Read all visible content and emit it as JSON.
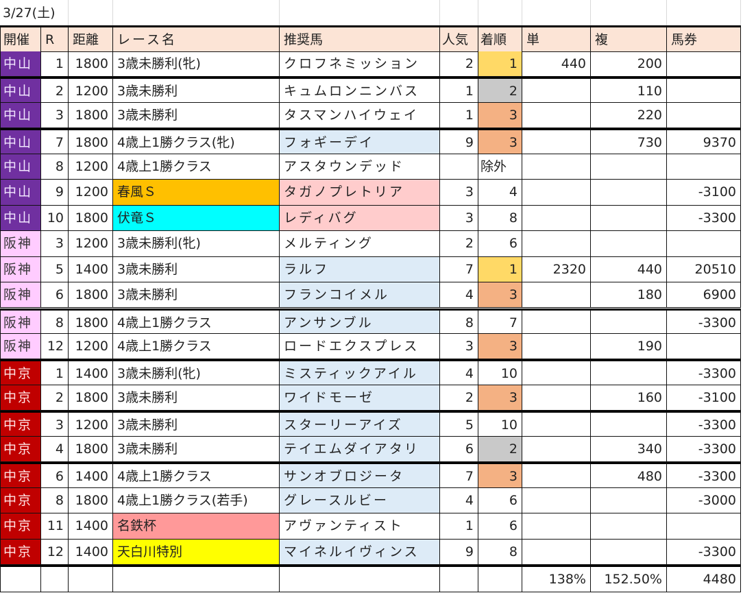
{
  "date_label": "3/27(土)",
  "headers": {
    "venue": "開催",
    "race": "R",
    "distance": "距離",
    "race_name": "レース名",
    "horse": "推奨馬",
    "popularity": "人気",
    "finish": "着順",
    "win": "単",
    "place": "複",
    "ticket": "馬券"
  },
  "colors": {
    "header_bg": "#fce4d6",
    "nakayama": "#7030a0",
    "hanshin": "#ffccff",
    "chukyo": "#c00000",
    "first_place": "#ffd966",
    "second_place": "#c9c9c9",
    "third_place": "#f4b183",
    "horse_highlight_blue": "#ddebf7",
    "horse_highlight_pink": "#ffcccc",
    "race_orange": "#ffc000",
    "race_cyan": "#00ffff",
    "race_salmon": "#ff9999",
    "race_yellow": "#ffff00"
  },
  "rows": [
    {
      "venue": "中山",
      "r": "1",
      "dist": "1800",
      "race": "3歳未勝利(牝)",
      "horse": "クロフネミッション",
      "pop": "2",
      "finish": "1",
      "win": "440",
      "place": "200",
      "ticket": "",
      "venue_cls": "nakayama",
      "race_bg": "",
      "horse_bg": "",
      "finish_bg": "#ffd966",
      "thick_top": true
    },
    {
      "venue": "中山",
      "r": "2",
      "dist": "1200",
      "race": "3歳未勝利",
      "horse": "キュムロンニンバス",
      "pop": "1",
      "finish": "2",
      "win": "",
      "place": "110",
      "ticket": "",
      "venue_cls": "nakayama",
      "race_bg": "",
      "horse_bg": "",
      "finish_bg": "#c9c9c9",
      "thick_top": true
    },
    {
      "venue": "中山",
      "r": "3",
      "dist": "1800",
      "race": "3歳未勝利",
      "horse": "タスマンハイウェイ",
      "pop": "1",
      "finish": "3",
      "win": "",
      "place": "220",
      "ticket": "",
      "venue_cls": "nakayama",
      "race_bg": "",
      "horse_bg": "",
      "finish_bg": "#f4b183",
      "thick_top": false
    },
    {
      "venue": "中山",
      "r": "7",
      "dist": "1800",
      "race": "4歳上1勝クラス(牝)",
      "horse": "フォギーデイ",
      "pop": "9",
      "finish": "3",
      "win": "",
      "place": "730",
      "ticket": "9370",
      "venue_cls": "nakayama",
      "race_bg": "",
      "horse_bg": "#ddebf7",
      "finish_bg": "#f4b183",
      "thick_top": true
    },
    {
      "venue": "中山",
      "r": "8",
      "dist": "1200",
      "race": "4歳上1勝クラス",
      "horse": "アスタウンデッド",
      "pop": "",
      "finish": "除外",
      "win": "",
      "place": "",
      "ticket": "",
      "venue_cls": "nakayama",
      "race_bg": "",
      "horse_bg": "",
      "finish_bg": "",
      "thick_top": false,
      "finish_left": true
    },
    {
      "venue": "中山",
      "r": "9",
      "dist": "1200",
      "race": "春風Ｓ",
      "horse": "タガノプレトリア",
      "pop": "3",
      "finish": "4",
      "win": "",
      "place": "",
      "ticket": "-3100",
      "venue_cls": "nakayama",
      "race_bg": "#ffc000",
      "horse_bg": "#ffcccc",
      "finish_bg": "",
      "thick_top": false
    },
    {
      "venue": "中山",
      "r": "10",
      "dist": "1800",
      "race": "伏竜Ｓ",
      "horse": "レディバグ",
      "pop": "3",
      "finish": "8",
      "win": "",
      "place": "",
      "ticket": "-3300",
      "venue_cls": "nakayama",
      "race_bg": "#00ffff",
      "horse_bg": "#ffcccc",
      "finish_bg": "",
      "thick_top": false
    },
    {
      "venue": "阪神",
      "r": "3",
      "dist": "1200",
      "race": "3歳未勝利(牝)",
      "horse": "メルティング",
      "pop": "2",
      "finish": "6",
      "win": "",
      "place": "",
      "ticket": "",
      "venue_cls": "hanshin",
      "race_bg": "",
      "horse_bg": "",
      "finish_bg": "",
      "thick_top": false
    },
    {
      "venue": "阪神",
      "r": "5",
      "dist": "1400",
      "race": "3歳未勝利",
      "horse": "ラルフ",
      "pop": "7",
      "finish": "1",
      "win": "2320",
      "place": "440",
      "ticket": "20510",
      "venue_cls": "hanshin",
      "race_bg": "",
      "horse_bg": "#ddebf7",
      "finish_bg": "#ffd966",
      "thick_top": false
    },
    {
      "venue": "阪神",
      "r": "6",
      "dist": "1800",
      "race": "3歳未勝利",
      "horse": "フランコイメル",
      "pop": "4",
      "finish": "3",
      "win": "",
      "place": "180",
      "ticket": "6900",
      "venue_cls": "hanshin",
      "race_bg": "",
      "horse_bg": "#ddebf7",
      "finish_bg": "#f4b183",
      "thick_top": false
    },
    {
      "venue": "阪神",
      "r": "8",
      "dist": "1800",
      "race": "4歳上1勝クラス",
      "horse": "アンサンブル",
      "pop": "8",
      "finish": "7",
      "win": "",
      "place": "",
      "ticket": "-3300",
      "venue_cls": "hanshin",
      "race_bg": "",
      "horse_bg": "#ddebf7",
      "finish_bg": "",
      "thick_top": true
    },
    {
      "venue": "阪神",
      "r": "12",
      "dist": "1200",
      "race": "4歳上1勝クラス",
      "horse": "ロードエクスプレス",
      "pop": "3",
      "finish": "3",
      "win": "",
      "place": "190",
      "ticket": "",
      "venue_cls": "hanshin",
      "race_bg": "",
      "horse_bg": "",
      "finish_bg": "#f4b183",
      "thick_top": false
    },
    {
      "venue": "中京",
      "r": "1",
      "dist": "1400",
      "race": "3歳未勝利(牝)",
      "horse": "ミスティックアイル",
      "pop": "4",
      "finish": "10",
      "win": "",
      "place": "",
      "ticket": "-3300",
      "venue_cls": "chukyo",
      "race_bg": "",
      "horse_bg": "#ddebf7",
      "finish_bg": "",
      "thick_top": true
    },
    {
      "venue": "中京",
      "r": "2",
      "dist": "1800",
      "race": "3歳未勝利",
      "horse": "ワイドモーゼ",
      "pop": "2",
      "finish": "3",
      "win": "",
      "place": "160",
      "ticket": "-3100",
      "venue_cls": "chukyo",
      "race_bg": "",
      "horse_bg": "#ddebf7",
      "finish_bg": "#f4b183",
      "thick_top": false
    },
    {
      "venue": "中京",
      "r": "3",
      "dist": "1200",
      "race": "3歳未勝利",
      "horse": "スターリーアイズ",
      "pop": "5",
      "finish": "10",
      "win": "",
      "place": "",
      "ticket": "-3300",
      "venue_cls": "chukyo",
      "race_bg": "",
      "horse_bg": "#ddebf7",
      "finish_bg": "",
      "thick_top": true
    },
    {
      "venue": "中京",
      "r": "4",
      "dist": "1800",
      "race": "3歳未勝利",
      "horse": "テイエムダイアタリ",
      "pop": "6",
      "finish": "2",
      "win": "",
      "place": "340",
      "ticket": "-3300",
      "venue_cls": "chukyo",
      "race_bg": "",
      "horse_bg": "#ddebf7",
      "finish_bg": "#c9c9c9",
      "thick_top": false
    },
    {
      "venue": "中京",
      "r": "6",
      "dist": "1400",
      "race": "4歳上1勝クラス",
      "horse": "サンオブロジータ",
      "pop": "7",
      "finish": "3",
      "win": "",
      "place": "480",
      "ticket": "-3300",
      "venue_cls": "chukyo",
      "race_bg": "",
      "horse_bg": "#ddebf7",
      "finish_bg": "#f4b183",
      "thick_top": true
    },
    {
      "venue": "中京",
      "r": "8",
      "dist": "1800",
      "race": "4歳上1勝クラス(若手)",
      "horse": "グレースルビー",
      "pop": "4",
      "finish": "6",
      "win": "",
      "place": "",
      "ticket": "-3000",
      "venue_cls": "chukyo",
      "race_bg": "",
      "horse_bg": "#ddebf7",
      "finish_bg": "",
      "thick_top": false
    },
    {
      "venue": "中京",
      "r": "11",
      "dist": "1400",
      "race": "名鉄杯",
      "horse": "アヴァンティスト",
      "pop": "1",
      "finish": "6",
      "win": "",
      "place": "",
      "ticket": "",
      "venue_cls": "chukyo",
      "race_bg": "#ff9999",
      "horse_bg": "",
      "finish_bg": "",
      "thick_top": false
    },
    {
      "venue": "中京",
      "r": "12",
      "dist": "1400",
      "race": "天白川特別",
      "horse": "マイネルイヴィンス",
      "pop": "9",
      "finish": "8",
      "win": "",
      "place": "",
      "ticket": "-3300",
      "venue_cls": "chukyo",
      "race_bg": "#ffff00",
      "horse_bg": "#ddebf7",
      "finish_bg": "",
      "thick_top": false
    }
  ],
  "totals": {
    "win_rate": "138%",
    "place_rate": "152.50%",
    "ticket_total": "4480"
  }
}
